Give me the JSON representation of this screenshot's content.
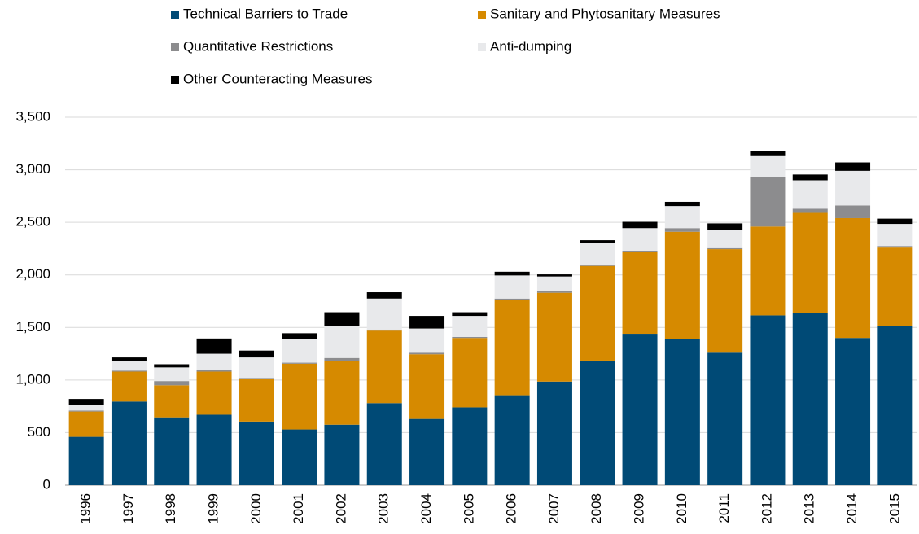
{
  "chart_data": {
    "type": "stacked_bar",
    "categories": [
      "1996",
      "1997",
      "1998",
      "1999",
      "2000",
      "2001",
      "2002",
      "2003",
      "2004",
      "2005",
      "2006",
      "2007",
      "2008",
      "2009",
      "2010",
      "2011",
      "2012",
      "2013",
      "2014",
      "2015"
    ],
    "series": [
      {
        "name": "Technical Barriers to Trade",
        "color": "#004a76",
        "values": [
          460,
          795,
          645,
          670,
          605,
          530,
          575,
          780,
          630,
          740,
          855,
          985,
          1185,
          1440,
          1390,
          1260,
          1615,
          1640,
          1400,
          1510
        ]
      },
      {
        "name": "Sanitary and Phytosanitary Measures",
        "color": "#d68a00",
        "values": [
          240,
          285,
          305,
          410,
          405,
          625,
          605,
          690,
          615,
          660,
          905,
          845,
          900,
          775,
          1020,
          985,
          845,
          950,
          1140,
          750
        ]
      },
      {
        "name": "Quantitative Restrictions",
        "color": "#8c8c8e",
        "values": [
          10,
          10,
          40,
          15,
          10,
          10,
          30,
          10,
          15,
          10,
          15,
          15,
          10,
          15,
          35,
          10,
          470,
          40,
          120,
          15
        ]
      },
      {
        "name": "Anti-dumping",
        "color": "#e8e9eb",
        "values": [
          55,
          90,
          130,
          155,
          195,
          225,
          305,
          295,
          230,
          200,
          220,
          140,
          205,
          215,
          210,
          175,
          200,
          270,
          330,
          210
        ]
      },
      {
        "name": "Other Counteracting Measures",
        "color": "#000000",
        "values": [
          55,
          35,
          30,
          145,
          65,
          55,
          130,
          60,
          120,
          35,
          35,
          20,
          30,
          60,
          40,
          60,
          45,
          55,
          80,
          50
        ]
      }
    ],
    "ylim": [
      0,
      3500
    ],
    "yticks": [
      0,
      500,
      {
        "value": 1000,
        "label": "1,000"
      },
      {
        "value": 1500,
        "label": "1,500"
      },
      {
        "value": 2000,
        "label": "2,000"
      },
      {
        "value": 2500,
        "label": "2,500"
      },
      {
        "value": 3000,
        "label": "3,000"
      },
      {
        "value": 3500,
        "label": "3,500"
      }
    ],
    "grid": true,
    "legend": "top"
  }
}
